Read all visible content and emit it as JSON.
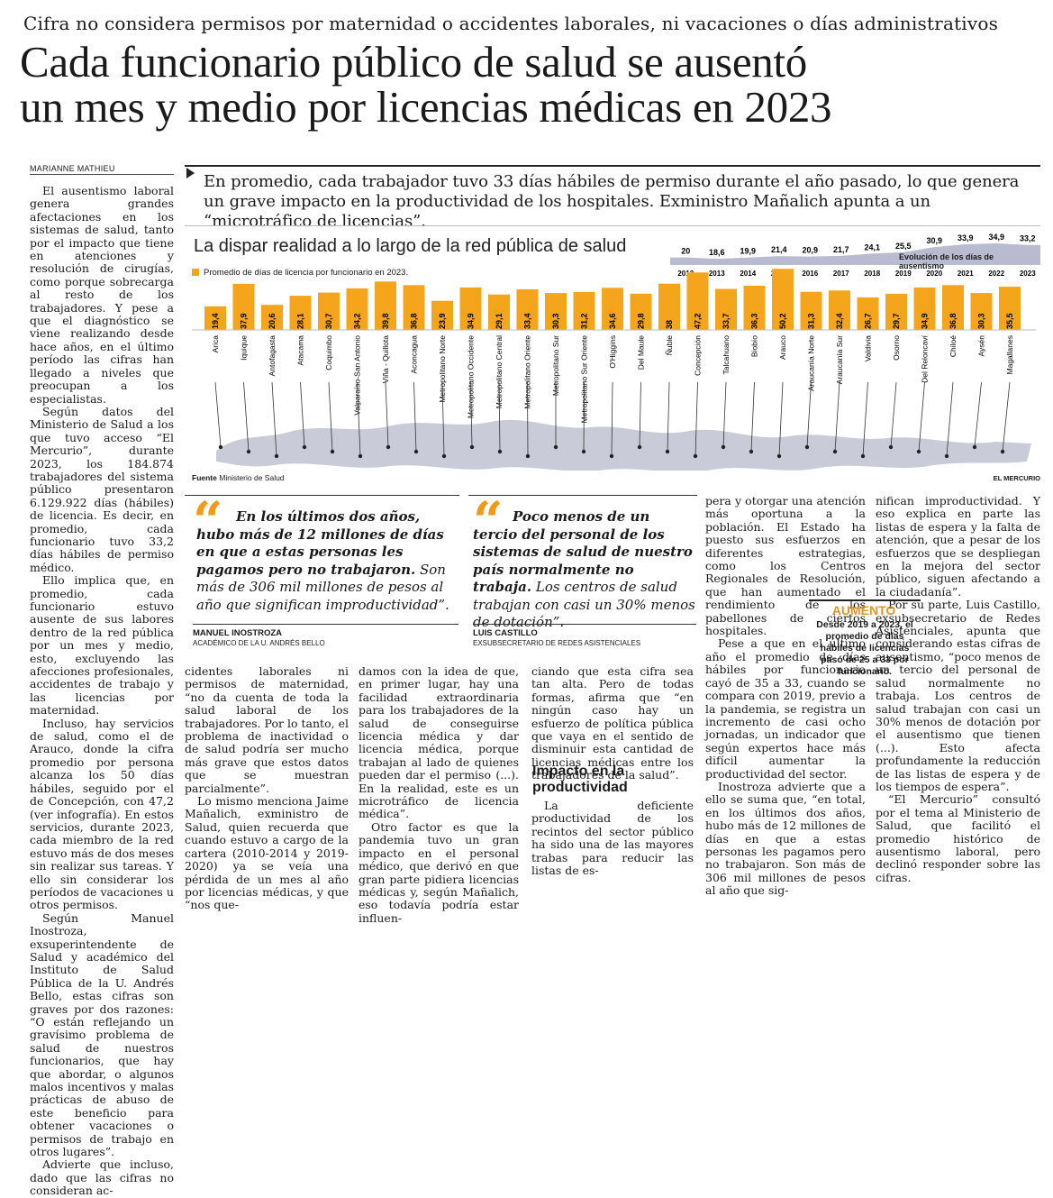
{
  "kicker": "Cifra no considera permisos por maternidad o accidentes laborales, ni vacaciones o días administrativos",
  "headline": [
    "Cada funcionario público de salud se ausentó",
    "un mes y medio por licencias médicas en 2023"
  ],
  "byline": "MARIANNE MATHIEU",
  "lead": "En promedio, cada trabajador tuvo 33 días hábiles de permiso durante el año pasado, lo que genera un grave impacto en la productividad de los hospitales. Exministro Mañalich apunta a un “microtráfico de licencias”.",
  "infographic": {
    "title": "La dispar realidad a lo largo de la red pública de salud",
    "legend": "Promedio de días de licencia por funcionario en 2023.",
    "evolution_label": "Evolución de los días de ausentismo",
    "source_label": "Fuente",
    "source": "Ministerio de Salud",
    "brand": "EL MERCURIO",
    "bar_color": "#f4a51c"
  },
  "chart_data": [
    {
      "type": "bar",
      "series_name": "Promedio de días de licencia por funcionario en 2023.",
      "categories": [
        "Arica",
        "Iquique",
        "Antofagasta",
        "Atacama",
        "Coquimbo",
        "Valparaíso-San Antonio",
        "Viña - Quillota",
        "Aconcagua",
        "Metropolitano Norte",
        "Metropolitano Occidente",
        "Metropolitano Central",
        "Metropolitano Oriente",
        "Metropolitano Sur",
        "Metropolitano Sur Oriente",
        "O'Higgins",
        "Del Maule",
        "Ñuble",
        "Concepción",
        "Talcahuano",
        "Biobío",
        "Arauco",
        "Araucanía Norte",
        "Araucanía Sur",
        "Valdivia",
        "Osorno",
        "Del Reloncaví",
        "Chiloé",
        "Aysén",
        "Magallanes"
      ],
      "values": [
        19.4,
        37.9,
        20.6,
        28.1,
        30.7,
        34.2,
        39.8,
        36.8,
        23.9,
        34.9,
        29.1,
        33.4,
        30.3,
        31.2,
        34.6,
        29.8,
        38,
        47.2,
        33.7,
        36.3,
        50.2,
        31.3,
        32.4,
        26.7,
        29.7,
        34.9,
        36.8,
        30.3,
        35.5
      ],
      "value_labels": [
        "19,4",
        "37,9",
        "20,6",
        "28,1",
        "30,7",
        "34,2",
        "39,8",
        "36,8",
        "23,9",
        "34,9",
        "29,1",
        "33,4",
        "30,3",
        "31,2",
        "34,6",
        "29,8",
        "38",
        "47,2",
        "33,7",
        "36,3",
        "50,2",
        "31,3",
        "32,4",
        "26,7",
        "29,7",
        "34,9",
        "36,8",
        "30,3",
        "35,5"
      ]
    },
    {
      "type": "area",
      "title": "Evolución de los días de ausentismo",
      "x": [
        "2012",
        "2013",
        "2014",
        "2015",
        "2016",
        "2017",
        "2018",
        "2019",
        "2020",
        "2021",
        "2022",
        "2023"
      ],
      "values": [
        20,
        18.6,
        19.9,
        21.4,
        20.9,
        21.7,
        24.1,
        25.5,
        30.9,
        33.9,
        34.9,
        33.2
      ],
      "value_labels": [
        "20",
        "18,6",
        "19,9",
        "21,4",
        "20,9",
        "21,7",
        "24,1",
        "25,5",
        "30,9",
        "33,9",
        "34,9",
        "33,2"
      ]
    }
  ],
  "quotes": [
    {
      "bold": "En los últimos dos años, hubo más de 12 millones de días en que a estas personas les pagamos pero no trabajaron.",
      "rest": " Son más de 306 mil millones de pesos al año que significan improductividad”.",
      "name": "MANUEL INOSTROZA",
      "role": "ACADÉMICO DE LA U. ANDRÉS BELLO"
    },
    {
      "bold": "Poco menos de un tercio del personal de los sistemas de salud de nuestro país normalmente no trabaja.",
      "rest": " Los centros de salud trabajan con casi un 30% menos de dotación”.",
      "name": "LUIS CASTILLO",
      "role": "EXSUBSECRETARIO DE REDES ASISTENCIALES"
    }
  ],
  "columns": {
    "col1": [
      "El ausentismo laboral genera grandes afectaciones en los sistemas de salud, tanto por el impacto que tiene en atenciones y resolución de cirugías, como porque sobrecarga al resto de los trabajadores. Y pese a que el diagnóstico se viene realizando desde hace años, en el último período las cifras han llegado a niveles que preocupan a los especialistas.",
      "Según datos del Ministerio de Salud a los que tuvo acceso “El Mercurio”, durante 2023, los 184.874 trabajadores del sistema público presentaron 6.129.922 días (hábiles) de licencia. Es decir, en promedio, cada funcionario tuvo 33,2 días hábiles de permiso médico.",
      "Ello implica que, en promedio, cada funcionario estuvo ausente de sus labores dentro de la red pública por un mes y medio, esto, excluyendo las afecciones profesionales, accidentes de trabajo y las licencias por maternidad.",
      "Incluso, hay servicios de salud, como el de Arauco, donde la cifra promedio por persona alcanza los 50 días hábiles, seguido por el de Concepción, con 47,2 (ver infografía). En estos servicios, durante 2023, cada miembro de la red estuvo más de dos meses sin realizar sus tareas. Y ello sin considerar los períodos de vacaciones u otros permisos.",
      "Según Manuel Inostroza, exsuperintendente de Salud y académico del Instituto de Salud Pública de la U. Andrés Bello, estas cifras son graves por dos razones: “O están reflejando un gravísimo problema de salud de nuestros funcionarios, que hay que abordar, o algunos malos incentivos y malas prácticas de abuso de este beneficio para obtener vacaciones o permisos de trabajo en otros lugares”.",
      "Advierte que incluso, dado que las cifras no consideran ac-"
    ],
    "col2": [
      "cidentes laborales ni permisos de maternidad, “no da cuenta de toda la salud laboral de los trabajadores. Por lo tanto, el problema de inactividad o de salud podría ser mucho más grave que estos datos que se muestran parcialmente”.",
      "Lo mismo menciona Jaime Mañalich, exministro de Salud, quien recuerda que cuando estuvo a cargo de la cartera (2010-2014 y 2019-2020) ya se veía una pérdida de un mes al año por licencias médicas, y que “nos que-"
    ],
    "col3": [
      "damos con la idea de que, en primer lugar, hay una facilidad extraordinaria para los trabajadores de la salud de conseguirse licencia médica y dar licencia médica, porque trabajan al lado de quienes pueden dar el permiso (...). En la realidad, este es un microtráfico de licencia médica”.",
      "Otro factor es que la pandemia tuvo un gran impacto en el personal médico, que derivó en que gran parte pidiera licencias médicas y, según Mañalich, eso todavía podría estar influen-"
    ],
    "col4a": [
      "ciando que esta cifra sea tan alta. Pero de todas formas, afirma que “en ningún caso hay un esfuerzo de política pública que vaya en el sentido de disminuir esta cantidad de licencias médicas entre los trabajadores de la salud”."
    ],
    "subhead": "Impacto en la productividad",
    "col4b": [
      "La deficiente productividad de los recintos del sector público ha sido una de las mayores trabas para reducir las listas de es-"
    ],
    "col5": [
      "pera y otorgar una atención más oportuna a la población. El Estado ha puesto sus esfuerzos en diferentes estrategias, como los Centros Regionales de Resolución, que han aumentado el rendimiento de los pabellones de ciertos hospitales.",
      "Pese a que en el último año el promedio de días hábiles por funcionario cayó de 35 a 33, cuando se compara con 2019, previo a la pandemia, se registra un incremento de casi ocho jornadas, un indicador que según expertos hace más difícil aumentar la productividad del sector.",
      "Inostroza advierte que a ello se suma que, “en total, en los últimos dos años, hubo más de 12 millones de días en que a estas personas les pagamos pero no trabajaron. Son más de 306 mil millones de pesos al año que sig-"
    ],
    "col6": [
      "nifican improductividad. Y eso explica en parte las listas de espera y la falta de atención, que a pesar de los esfuerzos que se despliegan en la mejora del sector público, siguen afectando a la ciudadanía”.",
      "Por su parte, Luis Castillo, exsubsecretario de Redes Asistenciales, apunta que considerando estas cifras de ausentismo, “poco menos de un tercio del personal de salud normalmente no trabaja. Los centros de salud trabajan con casi un 30% menos de dotación por el ausentismo que tienen (...). Esto afecta profundamente la reducción de las listas de espera y de los tiempos de espera”.",
      "“El Mercurio” consultó por el tema al Ministerio de Salud, que facilitó el promedio histórico de ausentismo laboral, pero declinó responder sobre las cifras."
    ]
  },
  "box": {
    "title": "AUMENTO",
    "text": "Desde 2019 a 2023, el promedio de días hábiles de licencias pasó de 25 a 33 por funcionario."
  }
}
